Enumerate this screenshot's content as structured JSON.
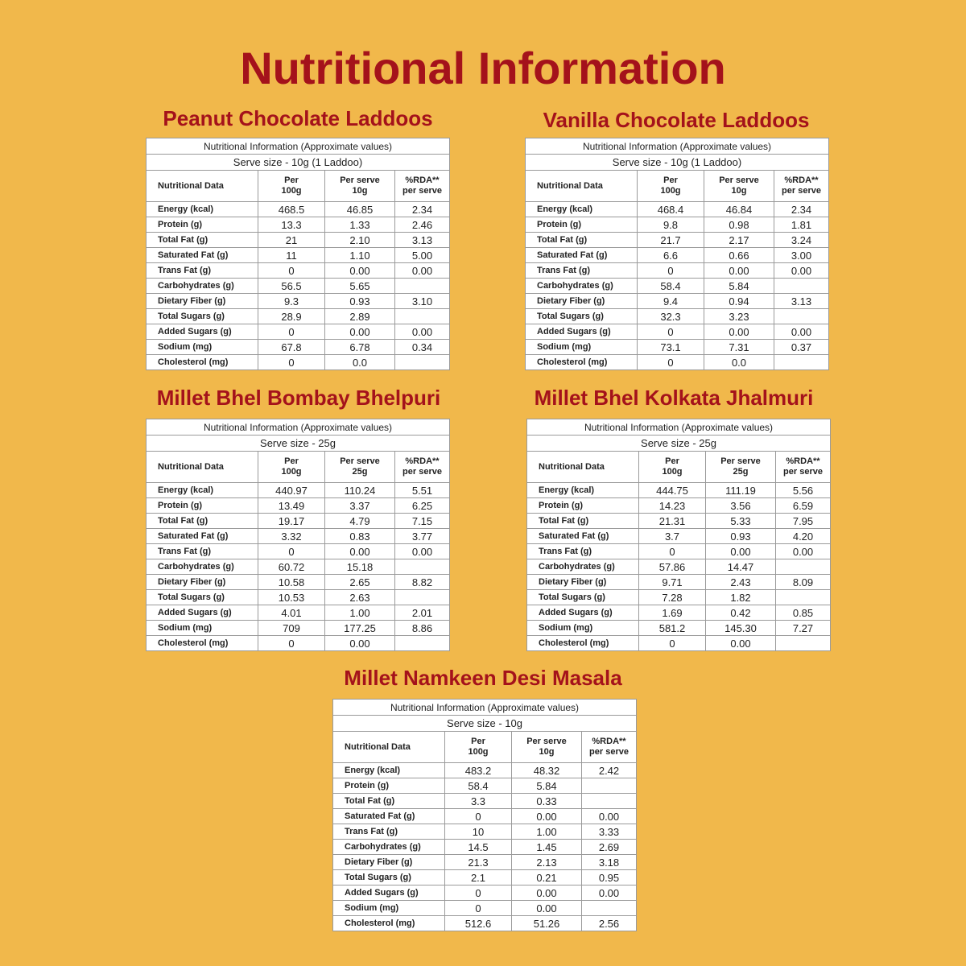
{
  "title": "Nutritional Information",
  "panels": [
    {
      "title": "Peanut Chocolate Laddoos",
      "table": {
        "caption": "Nutritional Information (Approximate values)",
        "serve_size": "Serve size - 10g (1 Laddoo)",
        "header": [
          "Nutritional Data",
          "Per\n100g",
          "Per serve\n10g",
          "%RDA**\nper serve"
        ],
        "rows": [
          [
            "Energy (kcal)",
            "468.5",
            "46.85",
            "2.34"
          ],
          [
            "Protein (g)",
            "13.3",
            "1.33",
            "2.46"
          ],
          [
            "Total Fat (g)",
            "21",
            "2.10",
            "3.13"
          ],
          [
            "Saturated Fat (g)",
            "11",
            "1.10",
            "5.00"
          ],
          [
            "Trans Fat (g)",
            "0",
            "0.00",
            "0.00"
          ],
          [
            "Carbohydrates (g)",
            "56.5",
            "5.65",
            null
          ],
          [
            "Dietary Fiber (g)",
            "9.3",
            "0.93",
            "3.10"
          ],
          [
            "Total Sugars (g)",
            "28.9",
            "2.89",
            null
          ],
          [
            "Added Sugars (g)",
            "0",
            "0.00",
            "0.00"
          ],
          [
            "Sodium (mg)",
            "67.8",
            "6.78",
            "0.34"
          ],
          [
            "Cholesterol (mg)",
            "0",
            "0.0",
            null
          ]
        ]
      }
    },
    {
      "title": "Vanilla Chocolate Laddoos",
      "table": {
        "caption": "Nutritional Information (Approximate values)",
        "serve_size": "Serve size - 10g (1 Laddoo)",
        "header": [
          "Nutritional Data",
          "Per\n100g",
          "Per serve\n10g",
          "%RDA**\nper serve"
        ],
        "rows": [
          [
            "Energy (kcal)",
            "468.4",
            "46.84",
            "2.34"
          ],
          [
            "Protein (g)",
            "9.8",
            "0.98",
            "1.81"
          ],
          [
            "Total Fat (g)",
            "21.7",
            "2.17",
            "3.24"
          ],
          [
            "Saturated Fat (g)",
            "6.6",
            "0.66",
            "3.00"
          ],
          [
            "Trans Fat (g)",
            "0",
            "0.00",
            "0.00"
          ],
          [
            "Carbohydrates (g)",
            "58.4",
            "5.84",
            null
          ],
          [
            "Dietary Fiber (g)",
            "9.4",
            "0.94",
            "3.13"
          ],
          [
            "Total Sugars (g)",
            "32.3",
            "3.23",
            null
          ],
          [
            "Added Sugars (g)",
            "0",
            "0.00",
            "0.00"
          ],
          [
            "Sodium (mg)",
            "73.1",
            "7.31",
            "0.37"
          ],
          [
            "Cholesterol (mg)",
            "0",
            "0.0",
            null
          ]
        ]
      }
    },
    {
      "title": "Millet Bhel Bombay Bhelpuri",
      "table": {
        "caption": "Nutritional Information (Approximate values)",
        "serve_size": "Serve size - 25g",
        "header": [
          "Nutritional Data",
          "Per\n100g",
          "Per serve\n25g",
          "%RDA**\nper serve"
        ],
        "rows": [
          [
            "Energy (kcal)",
            "440.97",
            "110.24",
            "5.51"
          ],
          [
            "Protein (g)",
            "13.49",
            "3.37",
            "6.25"
          ],
          [
            "Total Fat (g)",
            "19.17",
            "4.79",
            "7.15"
          ],
          [
            "Saturated Fat (g)",
            "3.32",
            "0.83",
            "3.77"
          ],
          [
            "Trans Fat (g)",
            "0",
            "0.00",
            "0.00"
          ],
          [
            "Carbohydrates (g)",
            "60.72",
            "15.18",
            null
          ],
          [
            "Dietary Fiber (g)",
            "10.58",
            "2.65",
            "8.82"
          ],
          [
            "Total Sugars (g)",
            "10.53",
            "2.63",
            null
          ],
          [
            "Added Sugars (g)",
            "4.01",
            "1.00",
            "2.01"
          ],
          [
            "Sodium (mg)",
            "709",
            "177.25",
            "8.86"
          ],
          [
            "Cholesterol (mg)",
            "0",
            "0.00",
            null
          ]
        ]
      }
    },
    {
      "title": "Millet Bhel Kolkata Jhalmuri",
      "table": {
        "caption": "Nutritional Information (Approximate values)",
        "serve_size": "Serve size - 25g",
        "header": [
          "Nutritional Data",
          "Per\n100g",
          "Per serve\n25g",
          "%RDA**\nper serve"
        ],
        "rows": [
          [
            "Energy (kcal)",
            "444.75",
            "111.19",
            "5.56"
          ],
          [
            "Protein (g)",
            "14.23",
            "3.56",
            "6.59"
          ],
          [
            "Total Fat (g)",
            "21.31",
            "5.33",
            "7.95"
          ],
          [
            "Saturated Fat (g)",
            "3.7",
            "0.93",
            "4.20"
          ],
          [
            "Trans Fat (g)",
            "0",
            "0.00",
            "0.00"
          ],
          [
            "Carbohydrates (g)",
            "57.86",
            "14.47",
            null
          ],
          [
            "Dietary Fiber (g)",
            "9.71",
            "2.43",
            "8.09"
          ],
          [
            "Total Sugars (g)",
            "7.28",
            "1.82",
            null
          ],
          [
            "Added Sugars (g)",
            "1.69",
            "0.42",
            "0.85"
          ],
          [
            "Sodium (mg)",
            "581.2",
            "145.30",
            "7.27"
          ],
          [
            "Cholesterol (mg)",
            "0",
            "0.00",
            null
          ]
        ]
      }
    },
    {
      "title": "Millet Namkeen Desi Masala",
      "table": {
        "caption": "Nutritional Information (Approximate values)",
        "serve_size": "Serve size - 10g",
        "header": [
          "Nutritional Data",
          "Per\n100g",
          "Per serve\n10g",
          "%RDA**\nper serve"
        ],
        "rows": [
          [
            "Energy (kcal)",
            "483.2",
            "48.32",
            "2.42"
          ],
          [
            "Protein (g)",
            "58.4",
            "5.84",
            null
          ],
          [
            "Total Fat (g)",
            "3.3",
            "0.33",
            null
          ],
          [
            "Saturated Fat (g)",
            "0",
            "0.00",
            "0.00"
          ],
          [
            "Trans Fat (g)",
            "10",
            "1.00",
            "3.33"
          ],
          [
            "Carbohydrates (g)",
            "14.5",
            "1.45",
            "2.69"
          ],
          [
            "Dietary Fiber (g)",
            "21.3",
            "2.13",
            "3.18"
          ],
          [
            "Total Sugars (g)",
            "2.1",
            "0.21",
            "0.95"
          ],
          [
            "Added Sugars (g)",
            "0",
            "0.00",
            "0.00"
          ],
          [
            "Sodium (mg)",
            "0",
            "0.00",
            null
          ],
          [
            "Cholesterol (mg)",
            "512.6",
            "51.26",
            "2.56"
          ]
        ]
      }
    }
  ]
}
